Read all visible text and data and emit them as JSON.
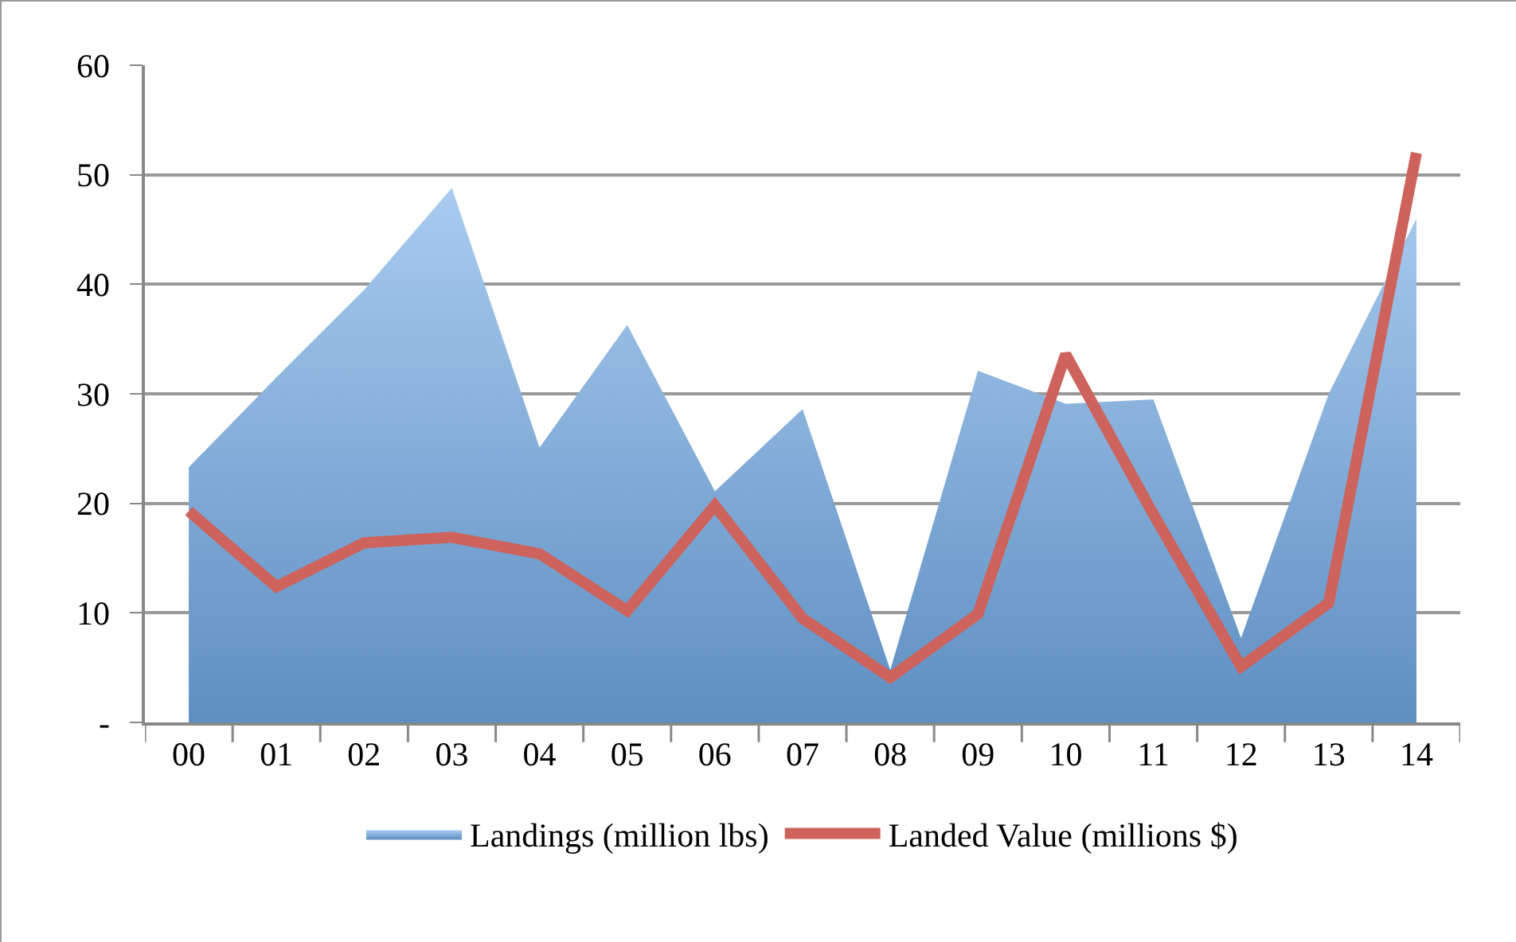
{
  "chart_data": {
    "type": "area",
    "categories": [
      "00",
      "01",
      "02",
      "03",
      "04",
      "05",
      "06",
      "07",
      "08",
      "09",
      "10",
      "11",
      "12",
      "13",
      "14"
    ],
    "series": [
      {
        "name": "Landings (million lbs)",
        "color": "#6fa8e4",
        "values": [
          23.3,
          31.5,
          39.5,
          48.8,
          25.1,
          36.3,
          21.1,
          28.6,
          4.8,
          32.1,
          29.1,
          29.5,
          7.7,
          30,
          46
        ]
      },
      {
        "name": "Landed Value (millions $)",
        "type": "line",
        "color": "#cd635c",
        "values": [
          19.3,
          12.4,
          16.4,
          16.9,
          15.4,
          10.2,
          19.8,
          9.5,
          4.1,
          9.9,
          33.6,
          19,
          5.1,
          10.9,
          52
        ]
      }
    ],
    "ylim": [
      0,
      60
    ],
    "yticks": [
      {
        "value": 0,
        "label": "-"
      },
      10,
      20,
      30,
      40,
      50,
      60
    ],
    "grid": "y",
    "legend": "bottom"
  }
}
